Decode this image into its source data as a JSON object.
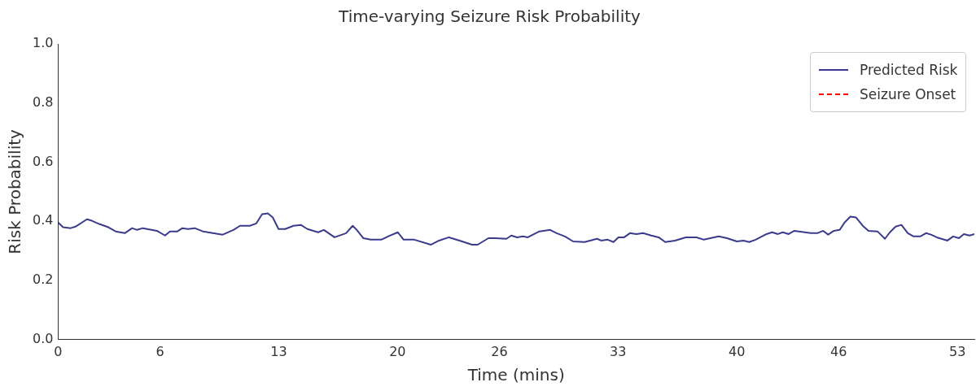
{
  "chart_data": {
    "type": "line",
    "title": "Time-varying Seizure Risk Probability",
    "xlabel": "Time (mins)",
    "ylabel": "Risk Probability",
    "xlim": [
      0,
      54
    ],
    "xticks": [
      0,
      6,
      13,
      20,
      26,
      33,
      40,
      46,
      53
    ],
    "ylim": [
      0,
      1
    ],
    "yticks": [
      {
        "value": 0,
        "label": "0.0"
      },
      {
        "value": 0.2,
        "label": "0.2"
      },
      {
        "value": 0.4,
        "label": "0.4"
      },
      {
        "value": 0.6,
        "label": "0.6"
      },
      {
        "value": 0.8,
        "label": "0.8"
      },
      {
        "value": 1,
        "label": "1.0"
      }
    ],
    "grid": false,
    "legend": "top right",
    "marker": "none",
    "line_style": "solid",
    "series": [
      {
        "name": "Predicted Risk",
        "color": "#3b3b8c",
        "x": [
          0,
          0.29,
          0.73,
          1.02,
          1.7,
          1.99,
          2.42,
          2.96,
          3.39,
          3.93,
          4.36,
          4.65,
          4.99,
          5.82,
          6.3,
          6.59,
          7.03,
          7.32,
          7.66,
          8.05,
          8.53,
          9.12,
          9.7,
          10.33,
          10.72,
          11.3,
          11.68,
          12.02,
          12.36,
          12.65,
          12.99,
          13.38,
          13.87,
          14.3,
          14.69,
          15.32,
          15.66,
          16.29,
          16.97,
          17.36,
          17.6,
          17.99,
          18.42,
          19.05,
          19.44,
          20.02,
          20.36,
          20.99,
          21.96,
          22.45,
          23.03,
          23.66,
          24.39,
          24.73,
          25.36,
          25.75,
          26.42,
          26.71,
          27.05,
          27.39,
          27.68,
          28.36,
          29,
          29.38,
          29.87,
          30.35,
          31.03,
          31.76,
          32,
          32.39,
          32.73,
          33.02,
          33.36,
          33.7,
          34.08,
          34.47,
          34.96,
          35.39,
          35.78,
          36.36,
          36.99,
          37.62,
          38.06,
          38.93,
          39.42,
          40,
          40.39,
          40.73,
          41.11,
          41.75,
          42.08,
          42.42,
          42.71,
          43.05,
          43.39,
          44.36,
          44.75,
          45.09,
          45.38,
          45.72,
          46.06,
          46.35,
          46.69,
          47.03,
          47.42,
          47.76,
          48.29,
          48.73,
          49.02,
          49.36,
          49.7,
          50.08,
          50.42,
          50.81,
          51.15,
          51.44,
          51.78,
          52.41,
          52.75,
          53.09,
          53.38,
          53.72,
          54
        ],
        "values": [
          0.396,
          0.38,
          0.377,
          0.382,
          0.407,
          0.402,
          0.391,
          0.38,
          0.366,
          0.36,
          0.377,
          0.371,
          0.377,
          0.368,
          0.352,
          0.366,
          0.366,
          0.377,
          0.374,
          0.377,
          0.366,
          0.36,
          0.355,
          0.371,
          0.385,
          0.385,
          0.393,
          0.424,
          0.427,
          0.413,
          0.374,
          0.374,
          0.385,
          0.388,
          0.374,
          0.363,
          0.371,
          0.346,
          0.36,
          0.385,
          0.371,
          0.343,
          0.338,
          0.338,
          0.349,
          0.363,
          0.338,
          0.338,
          0.321,
          0.335,
          0.346,
          0.335,
          0.321,
          0.321,
          0.343,
          0.343,
          0.341,
          0.352,
          0.346,
          0.349,
          0.346,
          0.366,
          0.371,
          0.36,
          0.349,
          0.332,
          0.33,
          0.341,
          0.335,
          0.338,
          0.33,
          0.346,
          0.346,
          0.36,
          0.357,
          0.36,
          0.352,
          0.346,
          0.33,
          0.335,
          0.346,
          0.346,
          0.338,
          0.349,
          0.343,
          0.332,
          0.335,
          0.33,
          0.338,
          0.357,
          0.363,
          0.357,
          0.363,
          0.357,
          0.368,
          0.36,
          0.36,
          0.368,
          0.355,
          0.368,
          0.371,
          0.396,
          0.416,
          0.413,
          0.385,
          0.368,
          0.366,
          0.341,
          0.363,
          0.382,
          0.388,
          0.36,
          0.349,
          0.349,
          0.36,
          0.355,
          0.346,
          0.335,
          0.349,
          0.343,
          0.357,
          0.352,
          0.357
        ]
      },
      {
        "name": "Seizure Onset",
        "color": "#ff0000",
        "line_style": "dashed"
      }
    ]
  }
}
